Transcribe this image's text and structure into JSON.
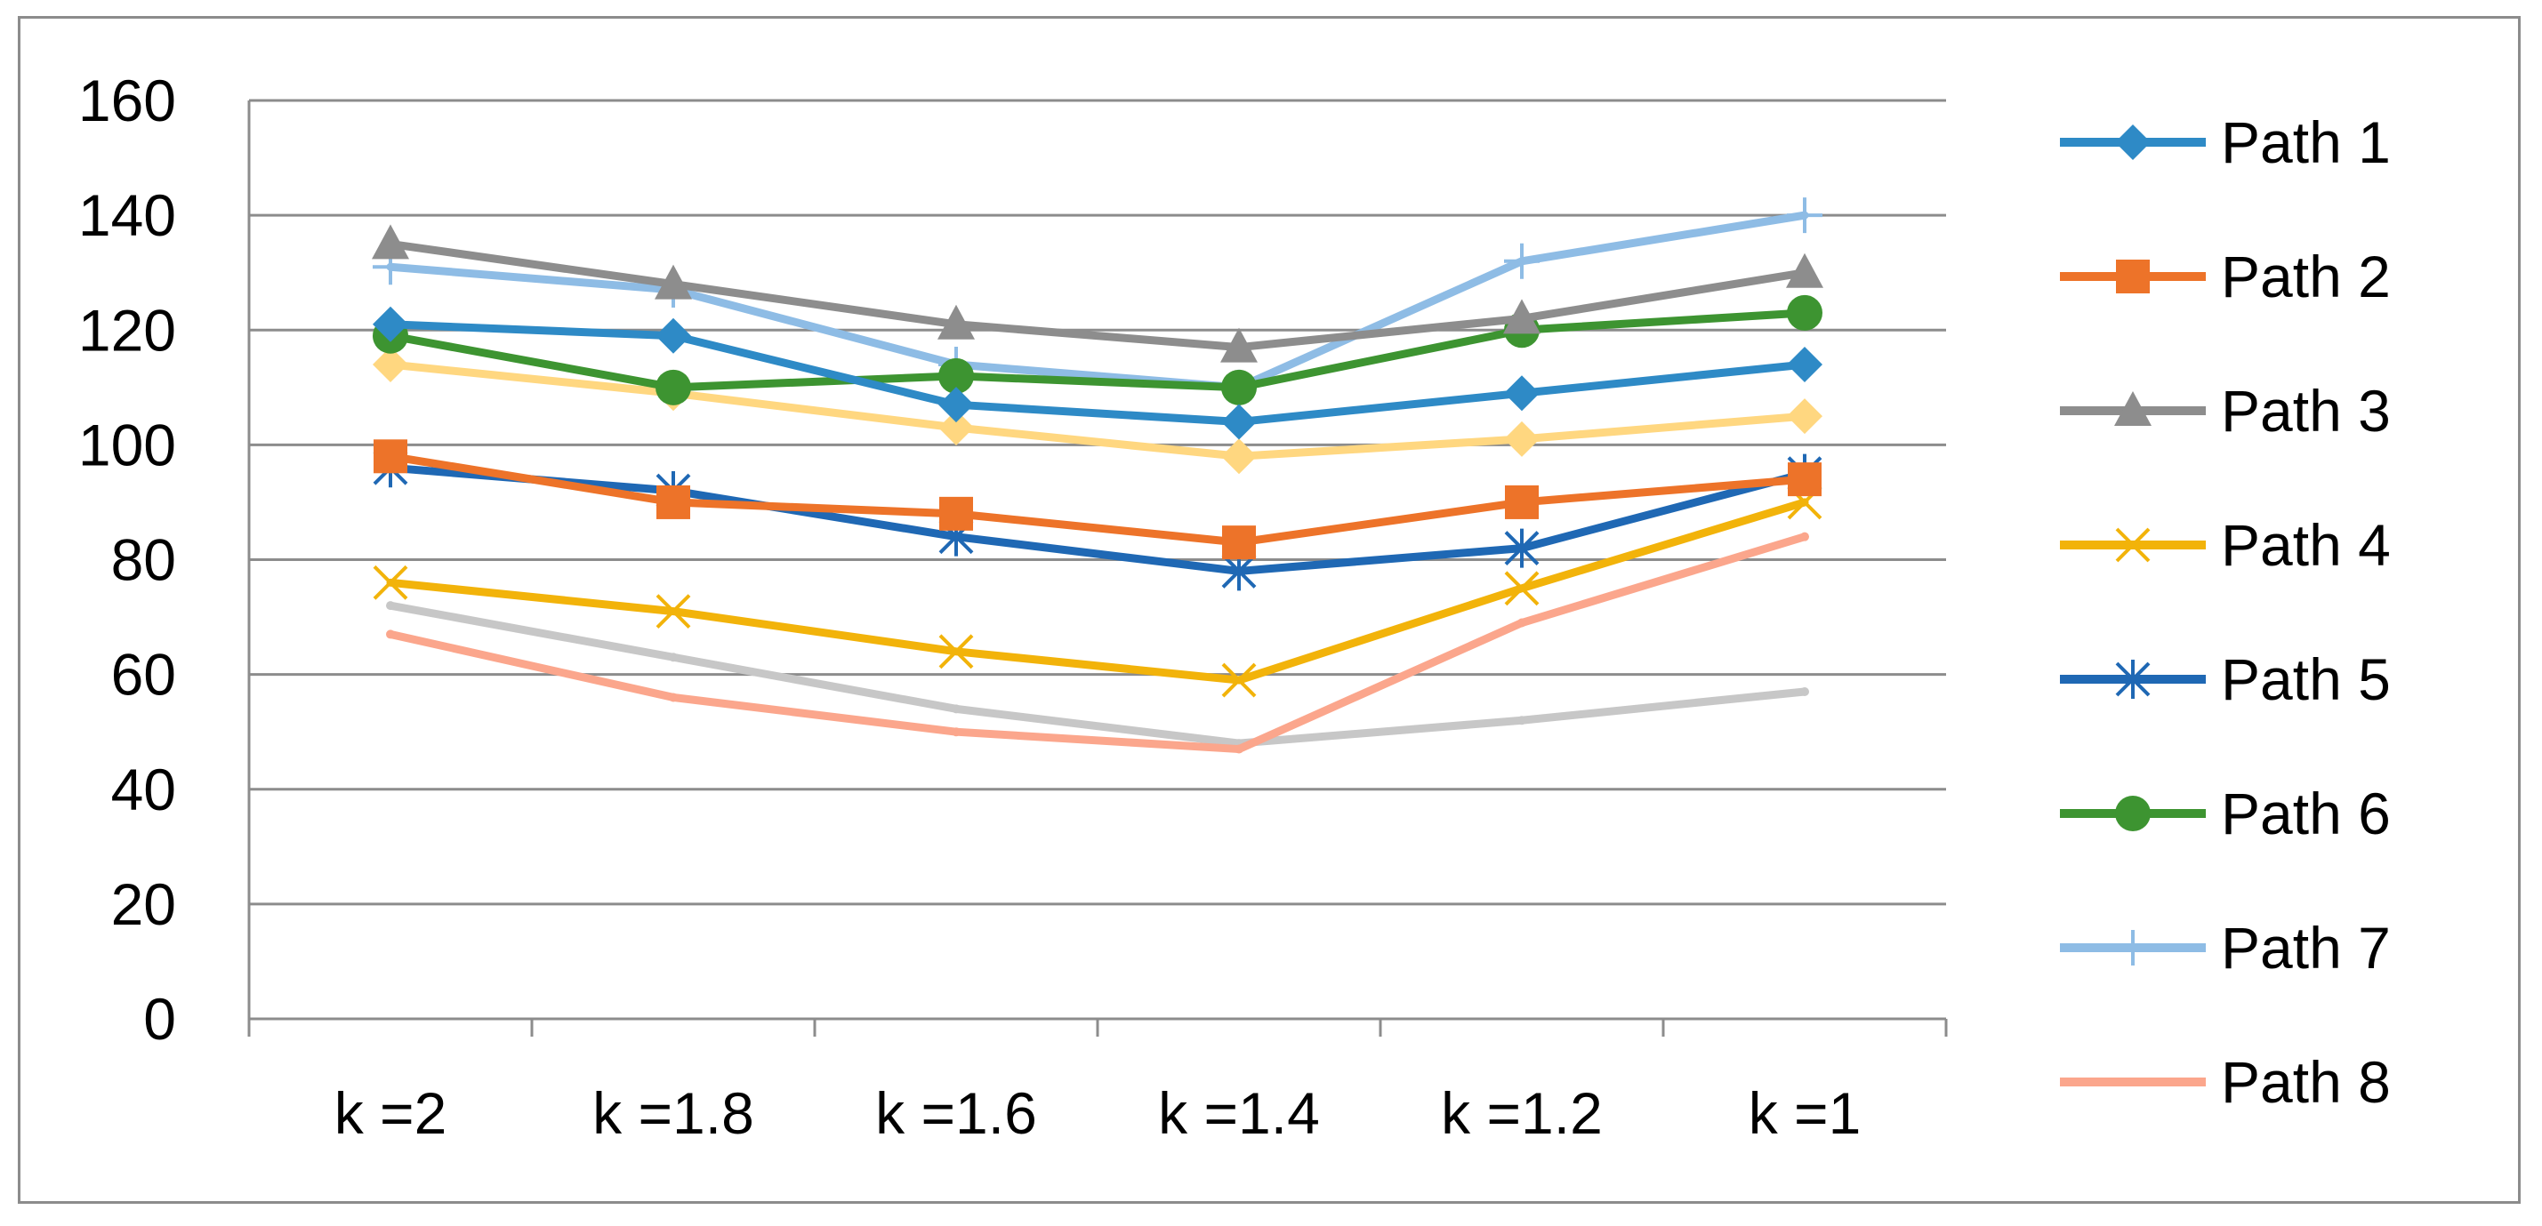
{
  "chart_data": {
    "type": "line",
    "title": "",
    "xlabel": "",
    "ylabel": "",
    "ylim": [
      0,
      160
    ],
    "y_ticks": [
      "0",
      "20",
      "40",
      "60",
      "80",
      "100",
      "120",
      "140",
      "160"
    ],
    "categories": [
      "k =2",
      "k =1.8",
      "k =1.6",
      "k =1.4",
      "k =1.2",
      "k =1"
    ],
    "grid": true,
    "legend_position": "right",
    "series": [
      {
        "name": "Path 1",
        "color": "#2e8ac6",
        "marker": "diamond",
        "values": [
          121,
          119,
          107,
          104,
          109,
          114
        ]
      },
      {
        "name": "Path 2",
        "color": "#ed7329",
        "marker": "square",
        "values": [
          98,
          90,
          88,
          83,
          90,
          94
        ]
      },
      {
        "name": "Path 3",
        "color": "#8d8d8d",
        "marker": "triangle",
        "values": [
          135,
          128,
          121,
          117,
          122,
          130
        ]
      },
      {
        "name": "Path 4",
        "color": "#f2b30a",
        "marker": "x",
        "values": [
          76,
          71,
          64,
          59,
          75,
          90
        ]
      },
      {
        "name": "Path 5",
        "color": "#1f68b4",
        "marker": "star",
        "values": [
          96,
          92,
          84,
          78,
          82,
          95
        ]
      },
      {
        "name": "Path 6",
        "color": "#3d9431",
        "marker": "circle",
        "values": [
          119,
          110,
          112,
          110,
          120,
          123
        ]
      },
      {
        "name": "Path 7",
        "color": "#8ebce5",
        "marker": "plus",
        "values": [
          131,
          127,
          114,
          110,
          132,
          140
        ]
      },
      {
        "name": "Path 8",
        "color": "#fba68c",
        "marker": "none",
        "values": [
          67,
          56,
          50,
          47,
          69,
          84
        ]
      },
      {
        "name": "",
        "color": "#c7c7c7",
        "marker": "none",
        "values": [
          72,
          63,
          54,
          48,
          52,
          57
        ]
      },
      {
        "name": "",
        "color": "#ffd780",
        "marker": "diamond",
        "values": [
          114,
          109,
          103,
          98,
          101,
          105
        ]
      }
    ]
  }
}
